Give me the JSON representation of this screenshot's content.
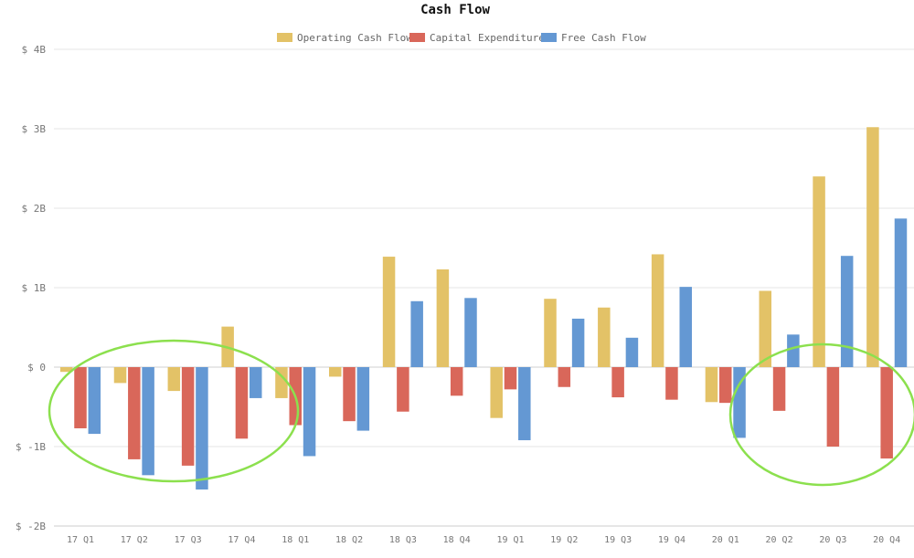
{
  "chart_data": {
    "type": "bar",
    "title": "Cash Flow",
    "categories": [
      "17 Q1",
      "17 Q2",
      "17 Q3",
      "17 Q4",
      "18 Q1",
      "18 Q2",
      "18 Q3",
      "18 Q4",
      "19 Q1",
      "19 Q2",
      "19 Q3",
      "19 Q4",
      "20 Q1",
      "20 Q2",
      "20 Q3",
      "20 Q4"
    ],
    "series": [
      {
        "name": "Operating Cash Flow",
        "color": "#e3c267",
        "values": [
          -0.06,
          -0.2,
          -0.3,
          0.51,
          -0.39,
          -0.12,
          1.39,
          1.23,
          -0.64,
          0.86,
          0.75,
          1.42,
          -0.44,
          0.96,
          2.4,
          3.02
        ]
      },
      {
        "name": "Capital Expenditures",
        "color": "#d9675a",
        "values": [
          -0.77,
          -1.16,
          -1.24,
          -0.9,
          -0.73,
          -0.68,
          -0.56,
          -0.36,
          -0.28,
          -0.25,
          -0.38,
          -0.41,
          -0.45,
          -0.55,
          -1.0,
          -1.15
        ]
      },
      {
        "name": "Free Cash Flow",
        "color": "#6498d3",
        "values": [
          -0.84,
          -1.36,
          -1.54,
          -0.39,
          -1.12,
          -0.8,
          0.83,
          0.87,
          -0.92,
          0.61,
          0.37,
          1.01,
          -0.89,
          0.41,
          1.4,
          1.87
        ]
      }
    ],
    "yticks": [
      4,
      3,
      2,
      1,
      0,
      -1,
      -2
    ],
    "ytick_labels": [
      "$ 4B",
      "$ 3B",
      "$ 2B",
      "$ 1B",
      "$ 0",
      "$ -1B",
      "$ -2B"
    ],
    "ylim": [
      -2,
      4
    ],
    "xlabel": "",
    "ylabel": "",
    "grid": true,
    "legend_position": "top-center",
    "annotations": [
      {
        "type": "ellipse",
        "color": "#8ce04e",
        "around": [
          "17 Q1",
          "17 Q4"
        ]
      },
      {
        "type": "ellipse",
        "color": "#8ce04e",
        "around": [
          "20 Q2",
          "20 Q4"
        ]
      }
    ]
  }
}
